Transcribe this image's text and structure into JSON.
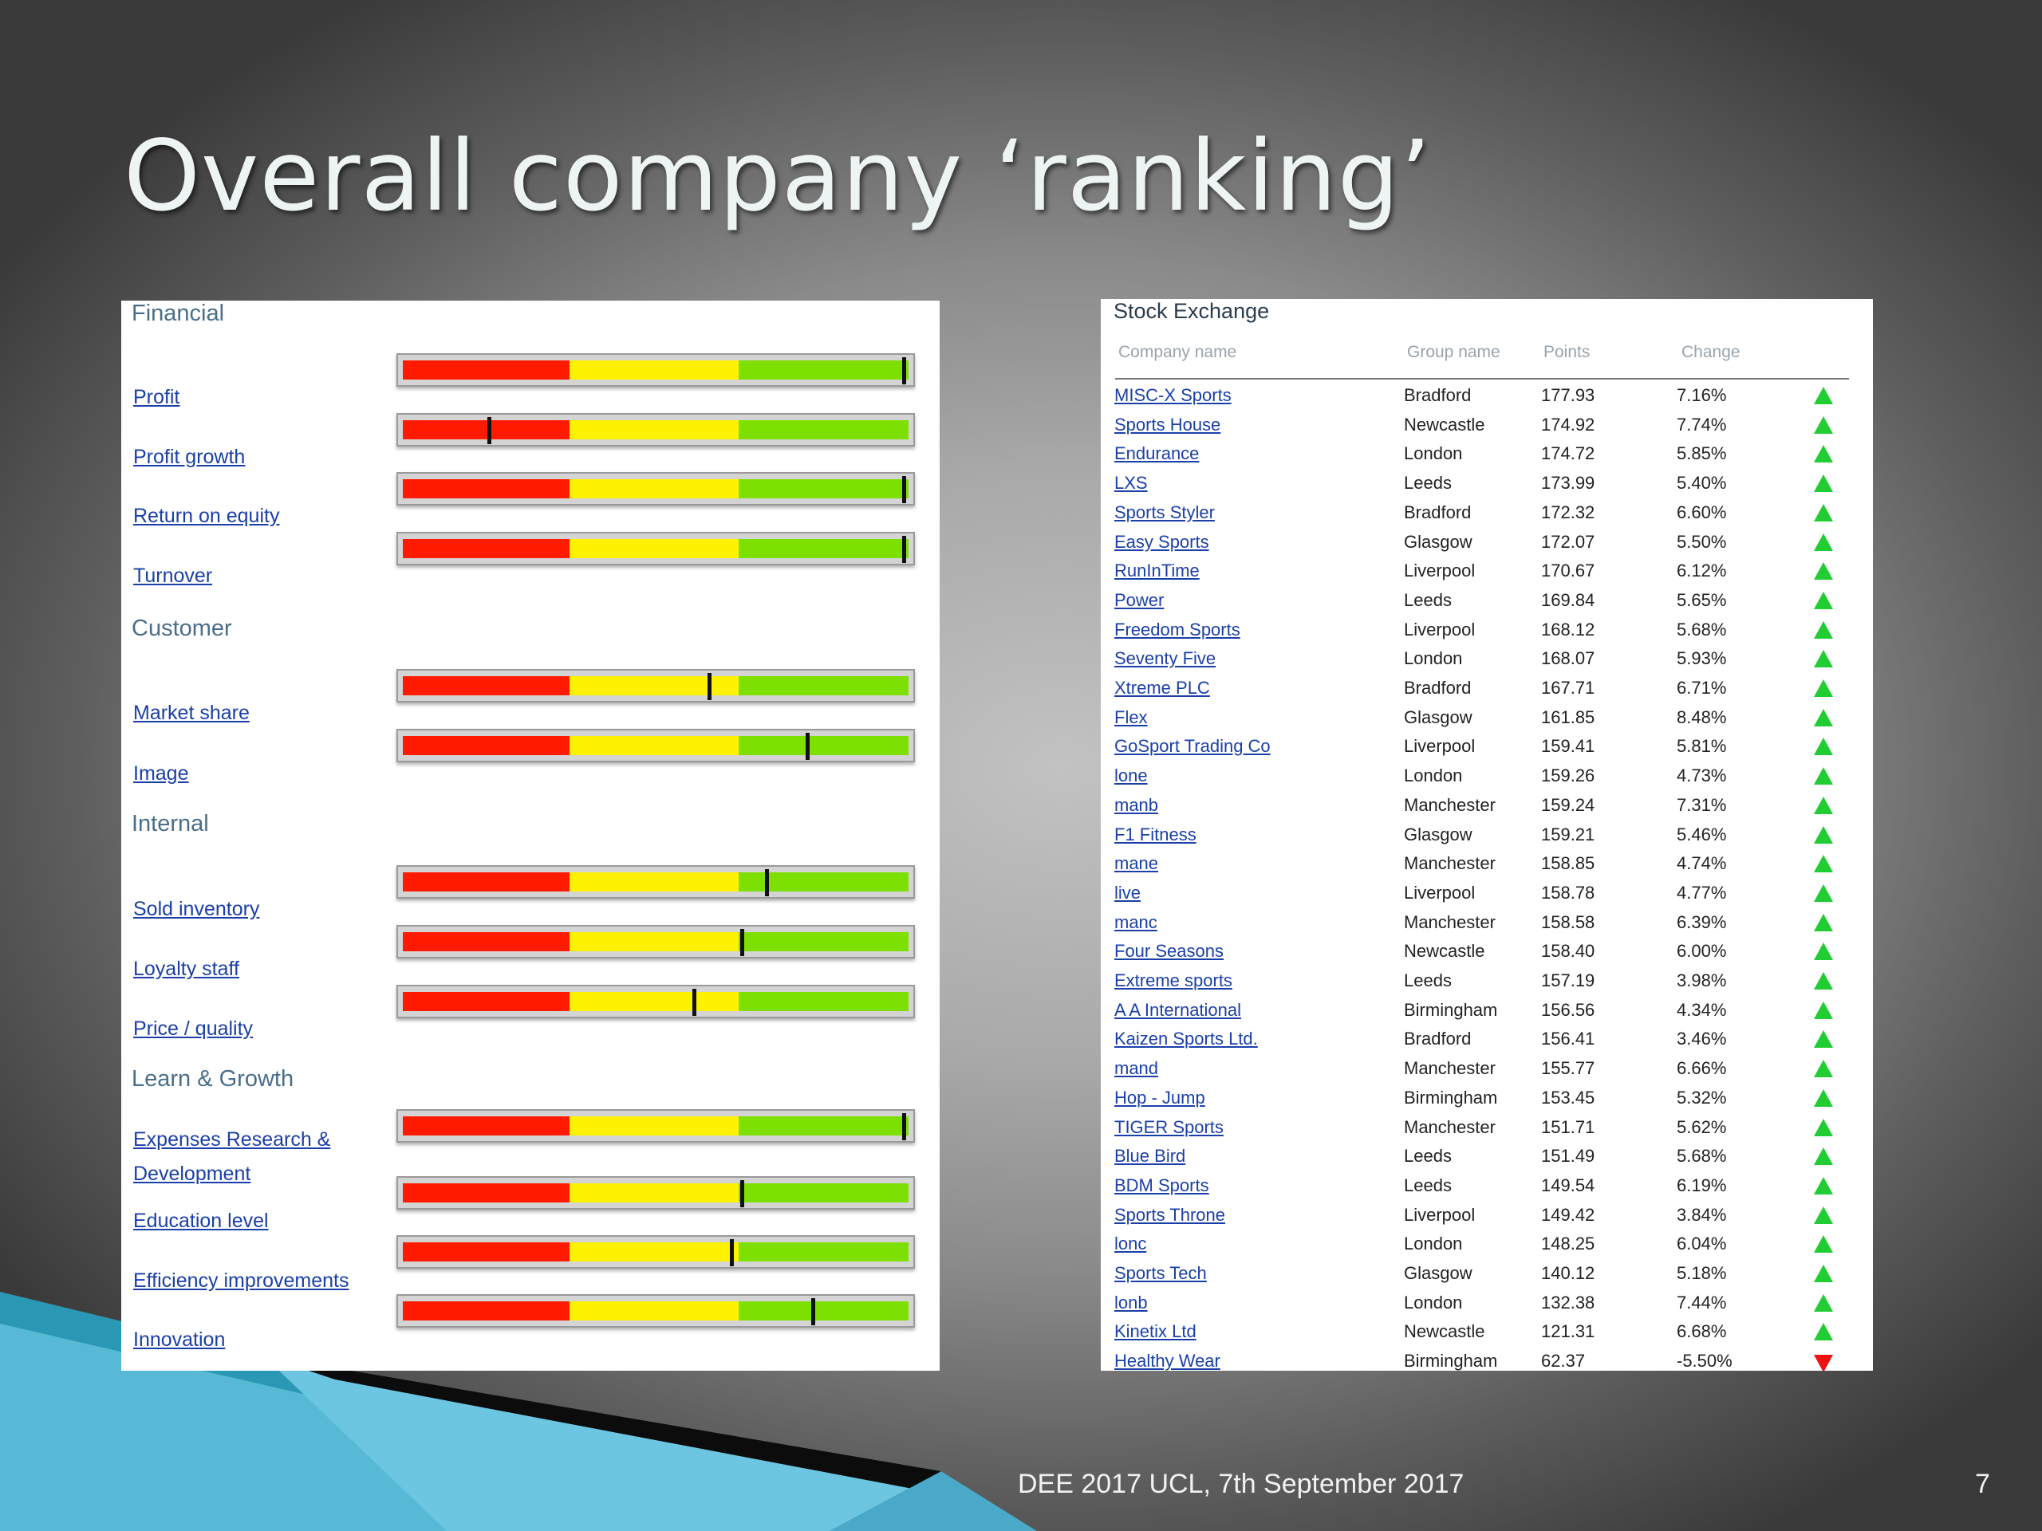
{
  "slide": {
    "title": "Overall company ‘ranking’",
    "footer": "DEE 2017 UCL, 7th September 2017",
    "page_number": "7"
  },
  "dashboard": {
    "sections": [
      {
        "title": "Financial",
        "metrics": [
          {
            "label": "Profit",
            "level": 0.99
          },
          {
            "label": "Profit growth",
            "level": 0.17
          },
          {
            "label": "Return on equity",
            "level": 0.99
          },
          {
            "label": "Turnover",
            "level": 0.99
          }
        ]
      },
      {
        "title": "Customer",
        "metrics": [
          {
            "label": "Market share",
            "level": 0.605
          },
          {
            "label": "Image",
            "level": 0.8
          }
        ]
      },
      {
        "title": "Internal",
        "metrics": [
          {
            "label": "Sold inventory",
            "level": 0.72
          },
          {
            "label": "Loyalty staff",
            "level": 0.67
          },
          {
            "label": "Price / quality",
            "level": 0.575
          }
        ]
      },
      {
        "title": "Learn & Growth",
        "metrics": [
          {
            "label": "Expenses Research & Development",
            "label_lines": [
              "Expenses Research &",
              "Development"
            ],
            "level": 0.99
          },
          {
            "label": "Education level",
            "level": 0.67
          },
          {
            "label": "Efficiency improvements",
            "level": 0.65
          },
          {
            "label": "Innovation",
            "level": 0.81
          }
        ]
      }
    ],
    "colors": {
      "low": "#ff1a00",
      "mid": "#fff200",
      "high": "#7ee000"
    }
  },
  "stock_exchange": {
    "title": "Stock Exchange",
    "columns": [
      "Company name",
      "Group name",
      "Points",
      "Change"
    ],
    "rows": [
      {
        "company": "MISC-X Sports",
        "group": "Bradford",
        "points": "177.93",
        "change": "7.16%",
        "trend": "up"
      },
      {
        "company": "Sports House",
        "group": "Newcastle",
        "points": "174.92",
        "change": "7.74%",
        "trend": "up"
      },
      {
        "company": "Endurance",
        "group": "London",
        "points": "174.72",
        "change": "5.85%",
        "trend": "up"
      },
      {
        "company": "LXS",
        "group": "Leeds",
        "points": "173.99",
        "change": "5.40%",
        "trend": "up"
      },
      {
        "company": "Sports Styler",
        "group": "Bradford",
        "points": "172.32",
        "change": "6.60%",
        "trend": "up"
      },
      {
        "company": "Easy Sports",
        "group": "Glasgow",
        "points": "172.07",
        "change": "5.50%",
        "trend": "up"
      },
      {
        "company": "RunInTime",
        "group": "Liverpool",
        "points": "170.67",
        "change": "6.12%",
        "trend": "up"
      },
      {
        "company": "Power",
        "group": "Leeds",
        "points": "169.84",
        "change": "5.65%",
        "trend": "up"
      },
      {
        "company": "Freedom Sports",
        "group": "Liverpool",
        "points": "168.12",
        "change": "5.68%",
        "trend": "up"
      },
      {
        "company": "Seventy Five",
        "group": "London",
        "points": "168.07",
        "change": "5.93%",
        "trend": "up"
      },
      {
        "company": "Xtreme PLC",
        "group": "Bradford",
        "points": "167.71",
        "change": "6.71%",
        "trend": "up"
      },
      {
        "company": "Flex",
        "group": "Glasgow",
        "points": "161.85",
        "change": "8.48%",
        "trend": "up"
      },
      {
        "company": "GoSport Trading Co",
        "group": "Liverpool",
        "points": "159.41",
        "change": "5.81%",
        "trend": "up"
      },
      {
        "company": "lone",
        "group": "London",
        "points": "159.26",
        "change": "4.73%",
        "trend": "up"
      },
      {
        "company": "manb",
        "group": "Manchester",
        "points": "159.24",
        "change": "7.31%",
        "trend": "up"
      },
      {
        "company": "F1 Fitness",
        "group": "Glasgow",
        "points": "159.21",
        "change": "5.46%",
        "trend": "up"
      },
      {
        "company": "mane",
        "group": "Manchester",
        "points": "158.85",
        "change": "4.74%",
        "trend": "up"
      },
      {
        "company": "live",
        "group": "Liverpool",
        "points": "158.78",
        "change": "4.77%",
        "trend": "up"
      },
      {
        "company": "manc",
        "group": "Manchester",
        "points": "158.58",
        "change": "6.39%",
        "trend": "up"
      },
      {
        "company": "Four Seasons",
        "group": "Newcastle",
        "points": "158.40",
        "change": "6.00%",
        "trend": "up"
      },
      {
        "company": "Extreme sports",
        "group": "Leeds",
        "points": "157.19",
        "change": "3.98%",
        "trend": "up"
      },
      {
        "company": "A A International",
        "group": "Birmingham",
        "points": "156.56",
        "change": "4.34%",
        "trend": "up"
      },
      {
        "company": "Kaizen Sports Ltd.",
        "group": "Bradford",
        "points": "156.41",
        "change": "3.46%",
        "trend": "up"
      },
      {
        "company": "mand",
        "group": "Manchester",
        "points": "155.77",
        "change": "6.66%",
        "trend": "up"
      },
      {
        "company": "Hop - Jump",
        "group": "Birmingham",
        "points": "153.45",
        "change": "5.32%",
        "trend": "up"
      },
      {
        "company": "TIGER Sports",
        "group": "Manchester",
        "points": "151.71",
        "change": "5.62%",
        "trend": "up"
      },
      {
        "company": "Blue Bird",
        "group": "Leeds",
        "points": "151.49",
        "change": "5.68%",
        "trend": "up"
      },
      {
        "company": "BDM Sports",
        "group": "Leeds",
        "points": "149.54",
        "change": "6.19%",
        "trend": "up"
      },
      {
        "company": "Sports Throne",
        "group": "Liverpool",
        "points": "149.42",
        "change": "3.84%",
        "trend": "up"
      },
      {
        "company": "lonc",
        "group": "London",
        "points": "148.25",
        "change": "6.04%",
        "trend": "up"
      },
      {
        "company": "Sports Tech",
        "group": "Glasgow",
        "points": "140.12",
        "change": "5.18%",
        "trend": "up"
      },
      {
        "company": "lonb",
        "group": "London",
        "points": "132.38",
        "change": "7.44%",
        "trend": "up"
      },
      {
        "company": "Kinetix Ltd",
        "group": "Newcastle",
        "points": "121.31",
        "change": "6.68%",
        "trend": "up"
      },
      {
        "company": "Healthy Wear",
        "group": "Birmingham",
        "points": "62.37",
        "change": "-5.50%",
        "trend": "down"
      }
    ],
    "colors": {
      "up": "#22cc33",
      "down": "#ee1111"
    }
  }
}
